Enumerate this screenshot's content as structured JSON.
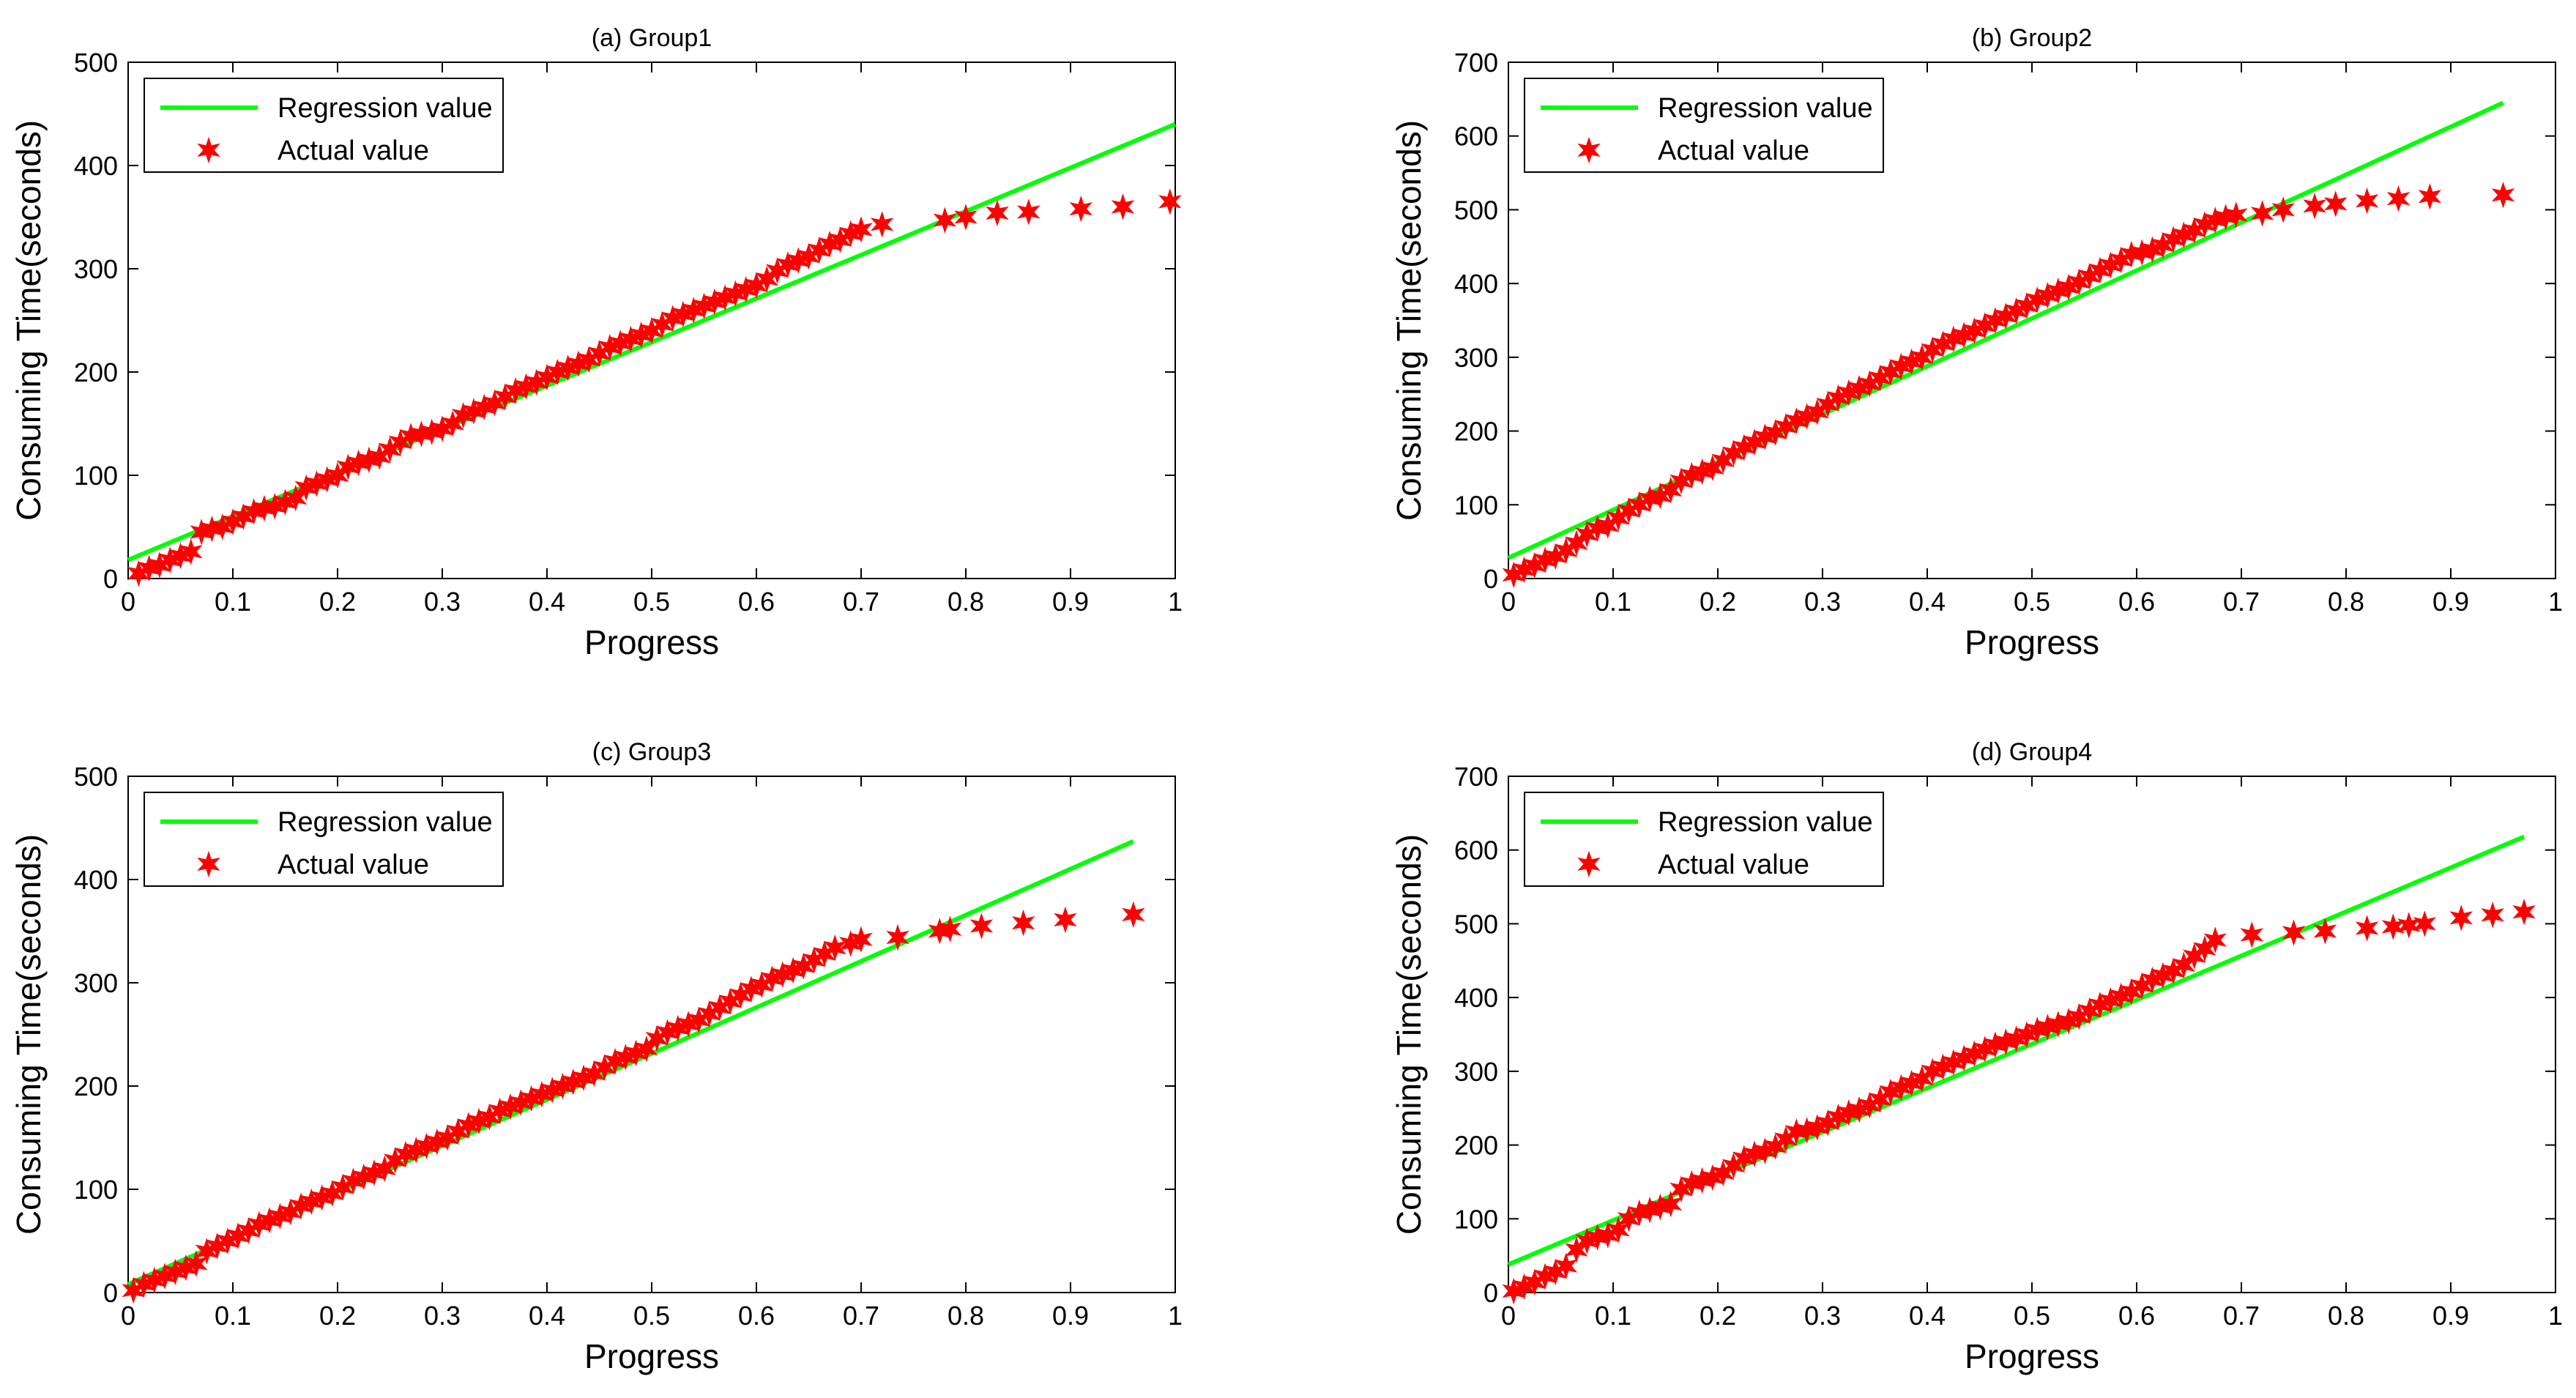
{
  "chart_data": [
    {
      "type": "line",
      "title": "(a) Group1",
      "xlabel": "Progress",
      "ylabel": "Consuming Time(seconds)",
      "xlim": [
        0,
        1
      ],
      "ylim": [
        0,
        500
      ],
      "xticks": [
        0,
        0.1,
        0.2,
        0.3,
        0.4,
        0.5,
        0.6,
        0.7,
        0.8,
        0.9,
        1
      ],
      "yticks": [
        0,
        100,
        200,
        300,
        400,
        500
      ],
      "xtick_labels": [
        "0",
        "0.1",
        "0.2",
        "0.3",
        "0.4",
        "0.5",
        "0.6",
        "0.7",
        "0.8",
        "0.9",
        "1"
      ],
      "ytick_labels": [
        "0",
        "100",
        "200",
        "300",
        "400",
        "500"
      ],
      "legend_position": "top-left",
      "grid": false,
      "series": [
        {
          "name": "Regression value",
          "kind": "line",
          "color": "#00ff00",
          "x": [
            0,
            1
          ],
          "y": [
            18,
            440
          ]
        },
        {
          "name": "Actual value",
          "kind": "marker",
          "marker": "*",
          "color": "#ff0000",
          "x": [
            0.01,
            0.02,
            0.03,
            0.04,
            0.05,
            0.06,
            0.07,
            0.08,
            0.09,
            0.1,
            0.11,
            0.12,
            0.13,
            0.14,
            0.15,
            0.16,
            0.17,
            0.18,
            0.19,
            0.2,
            0.21,
            0.22,
            0.23,
            0.24,
            0.25,
            0.26,
            0.27,
            0.28,
            0.29,
            0.3,
            0.31,
            0.32,
            0.33,
            0.34,
            0.35,
            0.36,
            0.37,
            0.38,
            0.39,
            0.4,
            0.41,
            0.42,
            0.43,
            0.44,
            0.45,
            0.46,
            0.47,
            0.48,
            0.49,
            0.5,
            0.51,
            0.52,
            0.53,
            0.54,
            0.55,
            0.56,
            0.57,
            0.58,
            0.59,
            0.6,
            0.61,
            0.62,
            0.63,
            0.64,
            0.65,
            0.66,
            0.67,
            0.68,
            0.69,
            0.7,
            0.72,
            0.78,
            0.8,
            0.83,
            0.86,
            0.91,
            0.95,
            0.995
          ],
          "y": [
            5,
            10,
            13,
            18,
            22,
            26,
            45,
            48,
            50,
            55,
            60,
            65,
            68,
            70,
            74,
            78,
            88,
            92,
            96,
            100,
            108,
            112,
            115,
            118,
            125,
            132,
            138,
            140,
            142,
            145,
            150,
            158,
            162,
            166,
            170,
            176,
            182,
            186,
            190,
            195,
            200,
            204,
            208,
            212,
            218,
            224,
            228,
            232,
            236,
            240,
            246,
            252,
            256,
            260,
            264,
            268,
            272,
            276,
            280,
            284,
            290,
            298,
            304,
            308,
            312,
            318,
            324,
            328,
            334,
            338,
            343,
            347,
            350,
            354,
            355,
            358,
            360,
            365
          ]
        }
      ]
    },
    {
      "type": "line",
      "title": "(b) Group2",
      "xlabel": "Progress",
      "ylabel": "Consuming Time(seconds)",
      "xlim": [
        0,
        1
      ],
      "ylim": [
        0,
        700
      ],
      "xticks": [
        0,
        0.1,
        0.2,
        0.3,
        0.4,
        0.5,
        0.6,
        0.7,
        0.8,
        0.9,
        1
      ],
      "yticks": [
        0,
        100,
        200,
        300,
        400,
        500,
        600,
        700
      ],
      "xtick_labels": [
        "0",
        "0.1",
        "0.2",
        "0.3",
        "0.4",
        "0.5",
        "0.6",
        "0.7",
        "0.8",
        "0.9",
        "1"
      ],
      "ytick_labels": [
        "0",
        "100",
        "200",
        "300",
        "400",
        "500",
        "600",
        "700"
      ],
      "legend_position": "top-left",
      "grid": false,
      "series": [
        {
          "name": "Regression value",
          "kind": "line",
          "color": "#00ff00",
          "x": [
            0,
            0.95
          ],
          "y": [
            28,
            645
          ]
        },
        {
          "name": "Actual value",
          "kind": "marker",
          "marker": "*",
          "color": "#ff0000",
          "x": [
            0.005,
            0.015,
            0.025,
            0.035,
            0.045,
            0.055,
            0.065,
            0.075,
            0.085,
            0.095,
            0.105,
            0.115,
            0.125,
            0.135,
            0.145,
            0.155,
            0.165,
            0.175,
            0.185,
            0.195,
            0.205,
            0.215,
            0.225,
            0.235,
            0.245,
            0.255,
            0.265,
            0.275,
            0.285,
            0.295,
            0.305,
            0.315,
            0.325,
            0.335,
            0.345,
            0.355,
            0.365,
            0.375,
            0.385,
            0.395,
            0.405,
            0.415,
            0.425,
            0.435,
            0.445,
            0.455,
            0.465,
            0.475,
            0.485,
            0.495,
            0.505,
            0.515,
            0.525,
            0.535,
            0.545,
            0.555,
            0.565,
            0.575,
            0.585,
            0.595,
            0.605,
            0.615,
            0.625,
            0.635,
            0.645,
            0.655,
            0.665,
            0.675,
            0.685,
            0.695,
            0.72,
            0.74,
            0.77,
            0.79,
            0.82,
            0.85,
            0.88,
            0.95
          ],
          "y": [
            5,
            12,
            18,
            25,
            30,
            38,
            48,
            60,
            68,
            72,
            82,
            92,
            100,
            108,
            112,
            120,
            132,
            140,
            145,
            150,
            160,
            170,
            178,
            185,
            192,
            198,
            206,
            214,
            220,
            226,
            236,
            245,
            252,
            258,
            264,
            272,
            280,
            288,
            294,
            300,
            310,
            318,
            325,
            330,
            336,
            343,
            350,
            356,
            363,
            370,
            378,
            384,
            390,
            395,
            402,
            410,
            418,
            425,
            432,
            440,
            442,
            446,
            452,
            460,
            466,
            472,
            480,
            486,
            490,
            493,
            495,
            500,
            505,
            508,
            512,
            515,
            518,
            520
          ]
        }
      ]
    },
    {
      "type": "line",
      "title": "(c) Group3",
      "xlabel": "Progress",
      "ylabel": "Consuming Time(seconds)",
      "xlim": [
        0,
        1
      ],
      "ylim": [
        0,
        500
      ],
      "xticks": [
        0,
        0.1,
        0.2,
        0.3,
        0.4,
        0.5,
        0.6,
        0.7,
        0.8,
        0.9,
        1
      ],
      "yticks": [
        0,
        100,
        200,
        300,
        400,
        500
      ],
      "xtick_labels": [
        "0",
        "0.1",
        "0.2",
        "0.3",
        "0.4",
        "0.5",
        "0.6",
        "0.7",
        "0.8",
        "0.9",
        "1"
      ],
      "ytick_labels": [
        "0",
        "100",
        "200",
        "300",
        "400",
        "500"
      ],
      "legend_position": "top-left",
      "grid": false,
      "series": [
        {
          "name": "Regression value",
          "kind": "line",
          "color": "#00ff00",
          "x": [
            0,
            0.96
          ],
          "y": [
            8,
            437
          ]
        },
        {
          "name": "Actual value",
          "kind": "marker",
          "marker": "*",
          "color": "#ff0000",
          "x": [
            0.005,
            0.015,
            0.025,
            0.035,
            0.045,
            0.055,
            0.065,
            0.075,
            0.085,
            0.095,
            0.105,
            0.115,
            0.125,
            0.135,
            0.145,
            0.155,
            0.165,
            0.175,
            0.185,
            0.195,
            0.205,
            0.215,
            0.225,
            0.235,
            0.245,
            0.255,
            0.265,
            0.275,
            0.285,
            0.295,
            0.305,
            0.315,
            0.325,
            0.335,
            0.345,
            0.355,
            0.365,
            0.375,
            0.385,
            0.395,
            0.405,
            0.415,
            0.425,
            0.435,
            0.445,
            0.455,
            0.465,
            0.475,
            0.485,
            0.495,
            0.505,
            0.515,
            0.525,
            0.535,
            0.545,
            0.555,
            0.565,
            0.575,
            0.585,
            0.595,
            0.605,
            0.615,
            0.625,
            0.635,
            0.645,
            0.655,
            0.665,
            0.675,
            0.69,
            0.7,
            0.735,
            0.775,
            0.785,
            0.815,
            0.855,
            0.895,
            0.96
          ],
          "y": [
            2,
            8,
            12,
            16,
            20,
            24,
            28,
            40,
            45,
            50,
            55,
            60,
            66,
            70,
            74,
            78,
            84,
            88,
            92,
            96,
            102,
            108,
            112,
            116,
            120,
            128,
            134,
            138,
            142,
            146,
            150,
            156,
            162,
            166,
            170,
            176,
            180,
            184,
            188,
            192,
            196,
            200,
            204,
            208,
            212,
            218,
            224,
            228,
            232,
            236,
            246,
            252,
            256,
            260,
            264,
            270,
            276,
            282,
            288,
            294,
            298,
            304,
            308,
            312,
            316,
            322,
            328,
            334,
            338,
            342,
            344,
            350,
            352,
            355,
            358,
            361,
            366
          ]
        }
      ]
    },
    {
      "type": "line",
      "title": "(d) Group4",
      "xlabel": "Progress",
      "ylabel": "Consuming Time(seconds)",
      "xlim": [
        0,
        1
      ],
      "ylim": [
        0,
        700
      ],
      "xticks": [
        0,
        0.1,
        0.2,
        0.3,
        0.4,
        0.5,
        0.6,
        0.7,
        0.8,
        0.9,
        1
      ],
      "yticks": [
        0,
        100,
        200,
        300,
        400,
        500,
        600,
        700
      ],
      "xtick_labels": [
        "0",
        "0.1",
        "0.2",
        "0.3",
        "0.4",
        "0.5",
        "0.6",
        "0.7",
        "0.8",
        "0.9",
        "1"
      ],
      "ytick_labels": [
        "0",
        "100",
        "200",
        "300",
        "400",
        "500",
        "600",
        "700"
      ],
      "legend_position": "top-left",
      "grid": false,
      "series": [
        {
          "name": "Regression value",
          "kind": "line",
          "color": "#00ff00",
          "x": [
            0,
            0.97
          ],
          "y": [
            38,
            618
          ]
        },
        {
          "name": "Actual value",
          "kind": "marker",
          "marker": "*",
          "color": "#ff0000",
          "x": [
            0.005,
            0.015,
            0.025,
            0.035,
            0.045,
            0.055,
            0.065,
            0.075,
            0.085,
            0.095,
            0.105,
            0.115,
            0.125,
            0.135,
            0.145,
            0.155,
            0.165,
            0.175,
            0.185,
            0.195,
            0.205,
            0.215,
            0.225,
            0.235,
            0.245,
            0.255,
            0.265,
            0.275,
            0.285,
            0.295,
            0.305,
            0.315,
            0.325,
            0.335,
            0.345,
            0.355,
            0.365,
            0.375,
            0.385,
            0.395,
            0.405,
            0.415,
            0.425,
            0.435,
            0.445,
            0.455,
            0.465,
            0.475,
            0.485,
            0.495,
            0.505,
            0.515,
            0.525,
            0.535,
            0.545,
            0.555,
            0.565,
            0.575,
            0.585,
            0.595,
            0.605,
            0.615,
            0.625,
            0.635,
            0.645,
            0.655,
            0.665,
            0.675,
            0.71,
            0.75,
            0.78,
            0.82,
            0.845,
            0.86,
            0.875,
            0.91,
            0.94,
            0.97
          ],
          "y": [
            2,
            8,
            14,
            22,
            28,
            36,
            58,
            70,
            75,
            78,
            85,
            100,
            108,
            112,
            116,
            120,
            140,
            148,
            152,
            156,
            162,
            172,
            182,
            188,
            192,
            198,
            208,
            218,
            220,
            224,
            230,
            238,
            244,
            248,
            254,
            262,
            272,
            278,
            284,
            290,
            300,
            306,
            312,
            318,
            324,
            330,
            336,
            340,
            344,
            350,
            356,
            360,
            364,
            368,
            374,
            382,
            390,
            396,
            402,
            408,
            416,
            424,
            430,
            436,
            444,
            456,
            466,
            478,
            485,
            488,
            490,
            494,
            496,
            498,
            500,
            508,
            512,
            516
          ]
        }
      ]
    }
  ]
}
